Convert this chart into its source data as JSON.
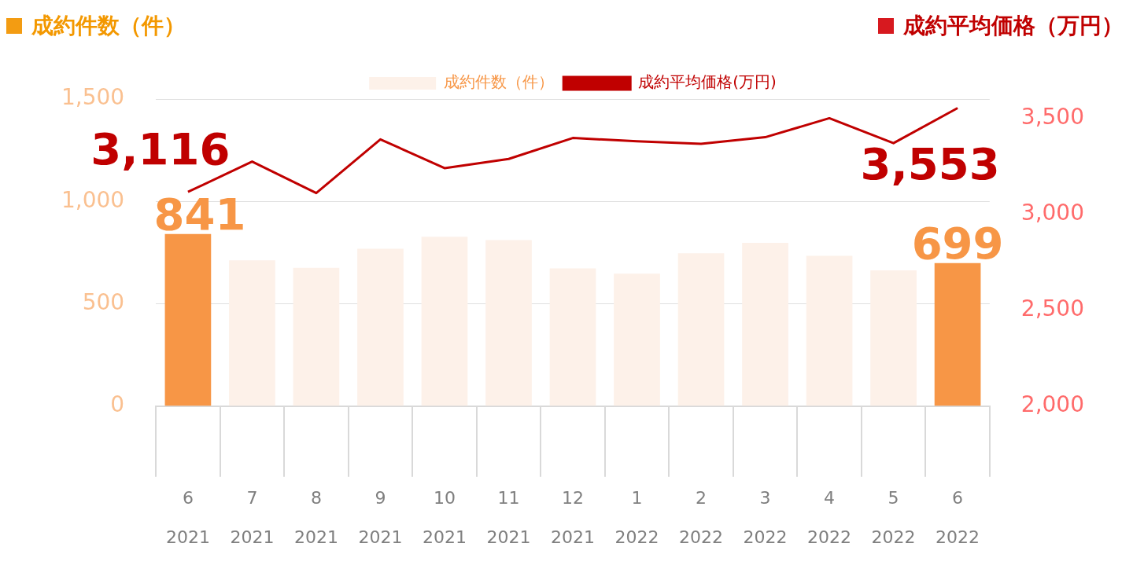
{
  "chart_data": {
    "type": "bar",
    "ylabel": "成約件数（件）",
    "y2label": "成約平均価格（万円）",
    "categories": [
      "6\n2021",
      "7\n2021",
      "8\n2021",
      "9\n2021",
      "10\n2021",
      "11\n2021",
      "12\n2021",
      "1\n2022",
      "2\n2022",
      "3\n2022",
      "4\n2022",
      "5\n2022",
      "6\n2022"
    ],
    "series": [
      {
        "name": "成約件数（件）",
        "color": "#fdf1e9",
        "colors": [
          "#f79646",
          "#fdf1e9",
          "#fdf1e9",
          "#fdf1e9",
          "#fdf1e9",
          "#fdf1e9",
          "#fdf1e9",
          "#fdf1e9",
          "#fdf1e9",
          "#fdf1e9",
          "#fdf1e9",
          "#fdf1e9",
          "#f79646"
        ],
        "values": [
          841,
          712,
          676,
          769,
          827,
          811,
          673,
          647,
          747,
          798,
          734,
          663,
          699
        ],
        "value_labels": [
          "841",
          null,
          null,
          null,
          null,
          null,
          null,
          null,
          null,
          null,
          null,
          null,
          "699"
        ]
      },
      {
        "name": "成約平均価格(万円)",
        "type": "line",
        "axis": "y2",
        "color": "#c00000",
        "values": [
          3116,
          3274,
          3110,
          3390,
          3240,
          3288,
          3397,
          3380,
          3367,
          3401,
          3500,
          3370,
          3553
        ],
        "value_labels": [
          "3,116",
          null,
          null,
          null,
          null,
          null,
          null,
          null,
          null,
          null,
          null,
          null,
          "3,553"
        ]
      }
    ],
    "ylim": [
      0,
      1500
    ],
    "yticks": [
      0,
      500,
      {
        "value": 1000,
        "label": "1,000"
      },
      {
        "value": 1500,
        "label": "1,500"
      }
    ],
    "y2lim": [
      2000,
      3600
    ],
    "y2ticks": [
      {
        "value": 2000,
        "label": "2,000"
      },
      {
        "value": 2500,
        "label": "2,500"
      },
      {
        "value": 3000,
        "label": "3,000"
      },
      {
        "value": 3500,
        "label": "3,500"
      }
    ],
    "grid": "y",
    "legend": "top",
    "marker": "none",
    "line_style": "solid"
  }
}
